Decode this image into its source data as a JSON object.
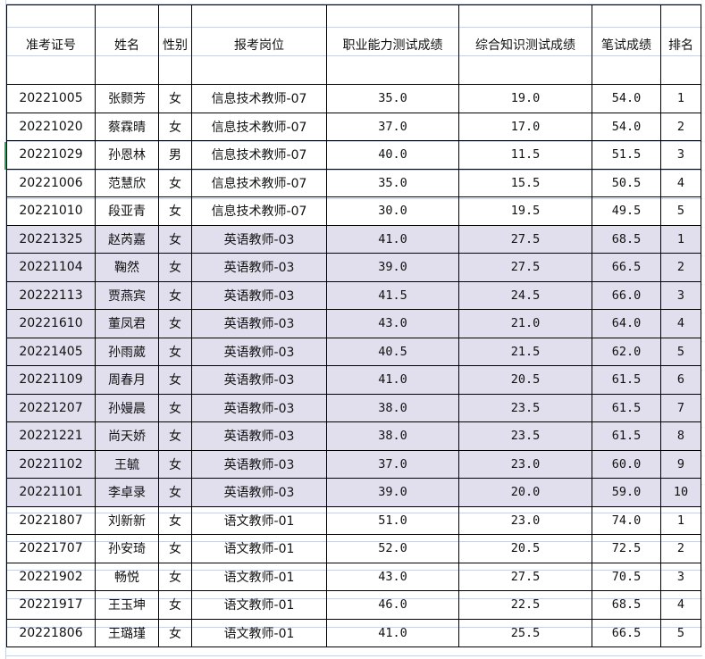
{
  "headers": [
    "准考证号",
    "姓名",
    "性别",
    "报考岗位",
    "职业能力测试成绩",
    "综合知识测试成绩",
    "笔试成绩",
    "排名"
  ],
  "colors": {
    "highlight_row": "#e1dfed",
    "selection": "#21a366"
  },
  "rows": [
    {
      "id": "20221005",
      "name": "张颢芳",
      "gender": "女",
      "post": "信息技术教师-07",
      "ability": "35.0",
      "knowledge": "19.0",
      "written": "54.0",
      "rank": "1",
      "hl": false
    },
    {
      "id": "20221020",
      "name": "蔡霖晴",
      "gender": "女",
      "post": "信息技术教师-07",
      "ability": "37.0",
      "knowledge": "17.0",
      "written": "54.0",
      "rank": "2",
      "hl": false
    },
    {
      "id": "20221029",
      "name": "孙恩林",
      "gender": "男",
      "post": "信息技术教师-07",
      "ability": "40.0",
      "knowledge": "11.5",
      "written": "51.5",
      "rank": "3",
      "hl": false
    },
    {
      "id": "20221006",
      "name": "范慧欣",
      "gender": "女",
      "post": "信息技术教师-07",
      "ability": "35.0",
      "knowledge": "15.5",
      "written": "50.5",
      "rank": "4",
      "hl": false
    },
    {
      "id": "20221010",
      "name": "段亚青",
      "gender": "女",
      "post": "信息技术教师-07",
      "ability": "30.0",
      "knowledge": "19.5",
      "written": "49.5",
      "rank": "5",
      "hl": false
    },
    {
      "id": "20221325",
      "name": "赵芮嘉",
      "gender": "女",
      "post": "英语教师-03",
      "ability": "41.0",
      "knowledge": "27.5",
      "written": "68.5",
      "rank": "1",
      "hl": true
    },
    {
      "id": "20221104",
      "name": "鞠然",
      "gender": "女",
      "post": "英语教师-03",
      "ability": "39.0",
      "knowledge": "27.5",
      "written": "66.5",
      "rank": "2",
      "hl": true
    },
    {
      "id": "20222113",
      "name": "贾燕宾",
      "gender": "女",
      "post": "英语教师-03",
      "ability": "41.5",
      "knowledge": "24.5",
      "written": "66.0",
      "rank": "3",
      "hl": true
    },
    {
      "id": "20221610",
      "name": "董凤君",
      "gender": "女",
      "post": "英语教师-03",
      "ability": "43.0",
      "knowledge": "21.0",
      "written": "64.0",
      "rank": "4",
      "hl": true
    },
    {
      "id": "20221405",
      "name": "孙雨葳",
      "gender": "女",
      "post": "英语教师-03",
      "ability": "40.5",
      "knowledge": "21.5",
      "written": "62.0",
      "rank": "5",
      "hl": true
    },
    {
      "id": "20221109",
      "name": "周春月",
      "gender": "女",
      "post": "英语教师-03",
      "ability": "41.0",
      "knowledge": "20.5",
      "written": "61.5",
      "rank": "6",
      "hl": true
    },
    {
      "id": "20221207",
      "name": "孙嫚晨",
      "gender": "女",
      "post": "英语教师-03",
      "ability": "38.0",
      "knowledge": "23.5",
      "written": "61.5",
      "rank": "7",
      "hl": true
    },
    {
      "id": "20221221",
      "name": "尚天娇",
      "gender": "女",
      "post": "英语教师-03",
      "ability": "38.0",
      "knowledge": "23.5",
      "written": "61.5",
      "rank": "8",
      "hl": true
    },
    {
      "id": "20221102",
      "name": "王毓",
      "gender": "女",
      "post": "英语教师-03",
      "ability": "37.0",
      "knowledge": "23.0",
      "written": "60.0",
      "rank": "9",
      "hl": true
    },
    {
      "id": "20221101",
      "name": "李卓录",
      "gender": "女",
      "post": "英语教师-03",
      "ability": "39.0",
      "knowledge": "20.0",
      "written": "59.0",
      "rank": "10",
      "hl": true
    },
    {
      "id": "20221807",
      "name": "刘新新",
      "gender": "女",
      "post": "语文教师-01",
      "ability": "51.0",
      "knowledge": "23.0",
      "written": "74.0",
      "rank": "1",
      "hl": false
    },
    {
      "id": "20221707",
      "name": "孙安琦",
      "gender": "女",
      "post": "语文教师-01",
      "ability": "52.0",
      "knowledge": "20.5",
      "written": "72.5",
      "rank": "2",
      "hl": false
    },
    {
      "id": "20221902",
      "name": "畅悦",
      "gender": "女",
      "post": "语文教师-01",
      "ability": "43.0",
      "knowledge": "27.5",
      "written": "70.5",
      "rank": "3",
      "hl": false
    },
    {
      "id": "20221917",
      "name": "王玉坤",
      "gender": "女",
      "post": "语文教师-01",
      "ability": "46.0",
      "knowledge": "22.5",
      "written": "68.5",
      "rank": "4",
      "hl": false
    },
    {
      "id": "20221806",
      "name": "王璐瑾",
      "gender": "女",
      "post": "语文教师-01",
      "ability": "41.0",
      "knowledge": "25.5",
      "written": "66.5",
      "rank": "5",
      "hl": false
    }
  ]
}
